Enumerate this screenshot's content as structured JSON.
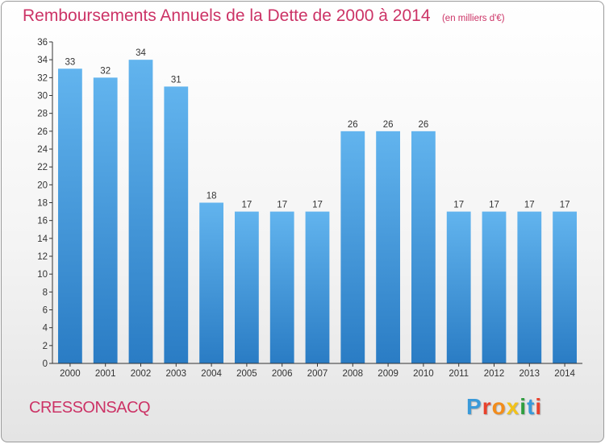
{
  "chart_data": {
    "type": "bar",
    "title": "Remboursements Annuels de la Dette de 2000 à 2014",
    "subtitle": "(en milliers d'€)",
    "categories": [
      "2000",
      "2001",
      "2002",
      "2003",
      "2004",
      "2005",
      "2006",
      "2007",
      "2008",
      "2009",
      "2010",
      "2011",
      "2012",
      "2013",
      "2014"
    ],
    "values": [
      33,
      32,
      34,
      31,
      18,
      17,
      17,
      17,
      26,
      26,
      26,
      17,
      17,
      17,
      17
    ],
    "data_labels": [
      "33",
      "32",
      "34",
      "31",
      "18",
      "17",
      "17",
      "17",
      "26",
      "26",
      "26",
      "17",
      "17",
      "17",
      "17"
    ],
    "ylim": [
      0,
      36
    ],
    "yticks": [
      0,
      2,
      4,
      6,
      8,
      10,
      12,
      14,
      16,
      18,
      20,
      22,
      24,
      26,
      28,
      30,
      32,
      34,
      36
    ],
    "grid": false,
    "legend": "none",
    "bar_color_top": "#62b4ee",
    "bar_color_bottom": "#2a7cc4"
  },
  "commune": "CRESSONSACQ",
  "brand": {
    "name": "Proxiti",
    "letters": [
      {
        "ch": "P",
        "color": "#3a9ad9"
      },
      {
        "ch": "r",
        "color": "#e8412c"
      },
      {
        "ch": "o",
        "color": "#f28c1c"
      },
      {
        "ch": "x",
        "color": "#f2c21b"
      },
      {
        "ch": "i",
        "color": "#2f9e3f"
      },
      {
        "ch": "t",
        "color": "#3a9ad9"
      },
      {
        "ch": "i",
        "color": "#e8412c"
      }
    ]
  },
  "colors": {
    "title": "#cc3366",
    "axis": "#333333"
  }
}
